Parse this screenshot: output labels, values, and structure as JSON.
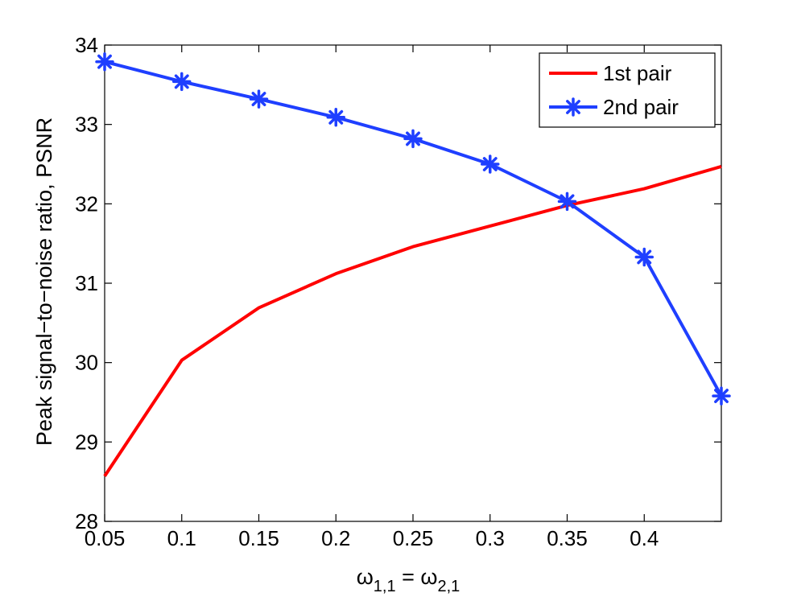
{
  "chart_data": {
    "type": "line",
    "title": "",
    "xlabel": "ω1,1 = ω2,1",
    "xlabel_parts": {
      "lhs": "ω",
      "lhs_sub": "1,1",
      "eq": " = ",
      "rhs": "ω",
      "rhs_sub": "2,1"
    },
    "ylabel": "Peak signal−to−noise ratio, PSNR",
    "xlim": [
      0.05,
      0.45
    ],
    "ylim": [
      28,
      34
    ],
    "xticks": [
      0.05,
      0.1,
      0.15,
      0.2,
      0.25,
      0.3,
      0.35,
      0.4
    ],
    "xtick_labels": [
      "0.05",
      "0.1",
      "0.15",
      "0.2",
      "0.25",
      "0.3",
      "0.35",
      "0.4"
    ],
    "yticks": [
      28,
      29,
      30,
      31,
      32,
      33,
      34
    ],
    "ytick_labels": [
      "28",
      "29",
      "30",
      "31",
      "32",
      "33",
      "34"
    ],
    "grid": false,
    "legend_position": "top-right",
    "x": [
      0.05,
      0.1,
      0.15,
      0.2,
      0.25,
      0.3,
      0.35,
      0.4,
      0.45
    ],
    "series": [
      {
        "name": "1st pair",
        "color": "#ff0000",
        "marker": "none",
        "values": [
          28.57,
          30.03,
          30.69,
          31.12,
          31.46,
          31.72,
          31.98,
          32.19,
          32.47
        ]
      },
      {
        "name": "2nd pair",
        "color": "#1f3fff",
        "marker": "asterisk",
        "values": [
          33.79,
          33.54,
          33.32,
          33.09,
          32.82,
          32.5,
          32.03,
          31.33,
          29.58
        ]
      }
    ]
  }
}
